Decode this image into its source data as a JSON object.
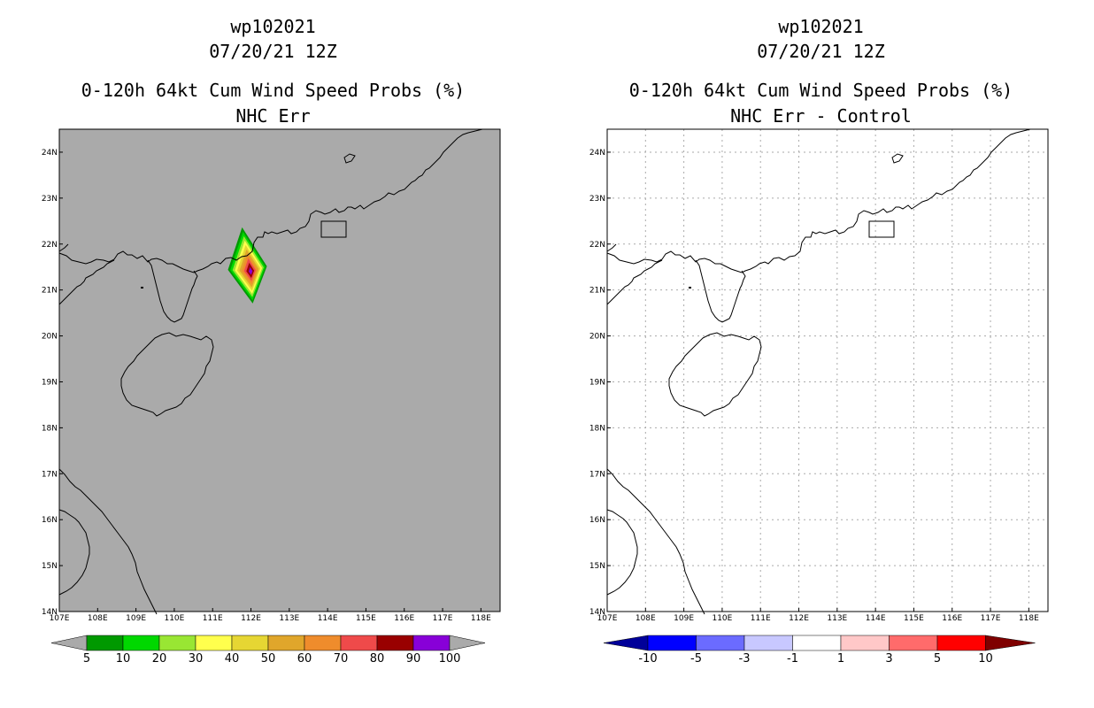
{
  "left_panel": {
    "title_line1": "wp102021",
    "title_line2": "07/20/21 12Z",
    "title_line3": "0-120h 64kt Cum Wind Speed Probs (%)",
    "title_line4": "NHC Err",
    "background_color": "#aaaaaa",
    "colorbar": {
      "colors": [
        "#009900",
        "#00d800",
        "#99e633",
        "#ffff4d",
        "#e6d633",
        "#e0a62b",
        "#ef8c2c",
        "#ef4a4a",
        "#990000",
        "#8800d8"
      ],
      "labels": [
        "5",
        "10",
        "20",
        "30",
        "40",
        "50",
        "60",
        "70",
        "80",
        "90",
        "100"
      ]
    }
  },
  "right_panel": {
    "title_line1": "wp102021",
    "title_line2": "07/20/21 12Z",
    "title_line3": "0-120h 64kt Cum Wind Speed Probs (%)",
    "title_line4": "NHC Err - Control",
    "background_color": "#ffffff",
    "colorbar": {
      "colors": [
        "#0000ff",
        "#6b6bff",
        "#c8c8ff",
        "#ffffff",
        "#ffc8c8",
        "#ff6b6b",
        "#ff0000"
      ],
      "left_tip": "#000099",
      "right_tip": "#7f0000",
      "labels": [
        "-10",
        "-5",
        "-3",
        "-1",
        "1",
        "3",
        "5",
        "10"
      ]
    }
  },
  "map": {
    "lat_labels": [
      "24N",
      "23N",
      "22N",
      "21N",
      "20N",
      "19N",
      "18N",
      "17N",
      "16N",
      "15N",
      "14N"
    ],
    "lon_labels": [
      "107E",
      "108E",
      "109E",
      "110E",
      "111E",
      "112E",
      "113E",
      "114E",
      "115E",
      "116E",
      "117E",
      "118E"
    ]
  },
  "probability_swath": {
    "center_lon": 112.0,
    "center_lat": 21.4,
    "levels": [
      {
        "value": 5,
        "color": "#009900"
      },
      {
        "value": 10,
        "color": "#00d800"
      },
      {
        "value": 20,
        "color": "#99e633"
      },
      {
        "value": 30,
        "color": "#ffff4d"
      },
      {
        "value": 40,
        "color": "#e6d633"
      },
      {
        "value": 50,
        "color": "#e0a62b"
      },
      {
        "value": 60,
        "color": "#ef8c2c"
      },
      {
        "value": 70,
        "color": "#ef4a4a"
      },
      {
        "value": 80,
        "color": "#990000"
      },
      {
        "value": 90,
        "color": "#8800d8"
      }
    ]
  }
}
